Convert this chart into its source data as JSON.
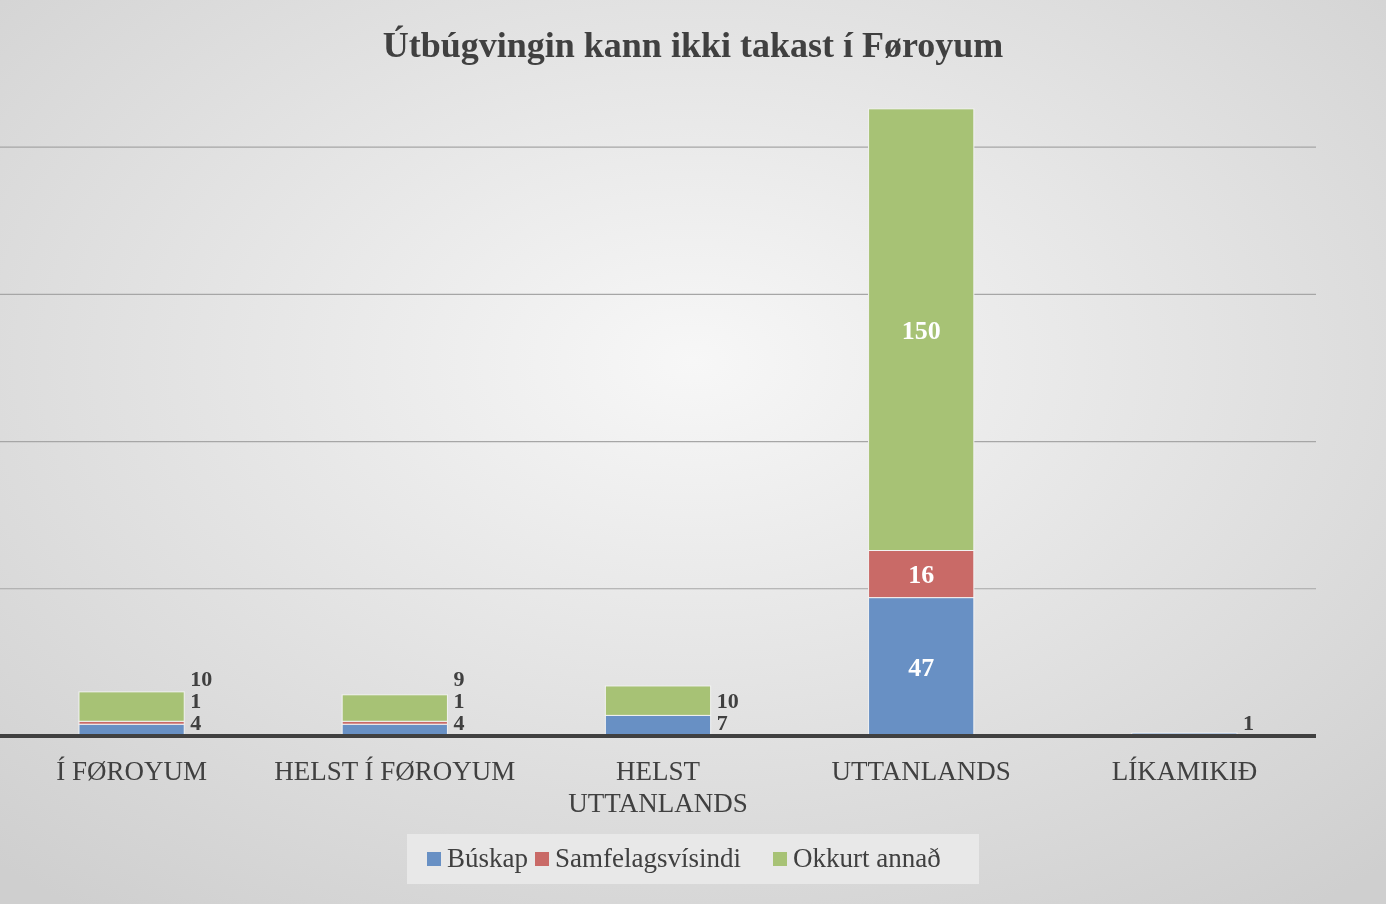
{
  "chart_data": {
    "type": "bar",
    "title": "Útbúgvingin kann ikki takast í Føroyum",
    "categories": [
      "Í FØROYUM",
      "HELST Í FØROYUM",
      "HELST UTTANLANDS",
      "UTTANLANDS",
      "LÍKAMIKIÐ"
    ],
    "series": [
      {
        "name": "Búskap",
        "color": "#6890c4",
        "values": [
          4,
          4,
          7,
          47,
          1
        ]
      },
      {
        "name": "Samfelagsvísindi",
        "color": "#c96a67",
        "values": [
          1,
          1,
          null,
          16,
          null
        ]
      },
      {
        "name": "Okkurt annað",
        "color": "#a7c275",
        "values": [
          10,
          9,
          10,
          150,
          null
        ]
      }
    ],
    "stacked": true,
    "data_labels": true,
    "yticks": [
      {
        "value": 0,
        "label": null
      },
      {
        "value": 50,
        "label": null
      },
      {
        "value": 100,
        "label": null
      },
      {
        "value": 150,
        "label": null
      },
      {
        "value": 200,
        "label": null
      }
    ],
    "grid": "y",
    "tick_labels": "x",
    "legend": "bottom"
  }
}
